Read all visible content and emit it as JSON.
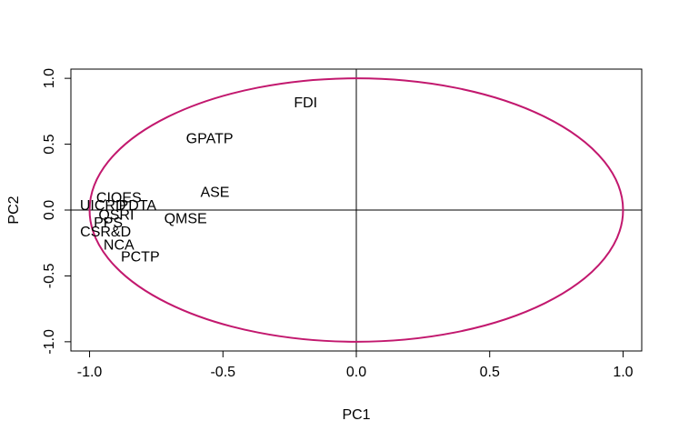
{
  "chart_data": {
    "type": "scatter",
    "title": "",
    "xlabel": "PC1",
    "ylabel": "PC2",
    "xlim": [
      -1.07,
      1.07
    ],
    "ylim": [
      -1.07,
      1.07
    ],
    "xticks": [
      -1.0,
      -0.5,
      0.0,
      0.5,
      1.0
    ],
    "yticks": [
      -1.0,
      -0.5,
      0.0,
      0.5,
      1.0
    ],
    "xtick_labels": [
      "-1.0",
      "-0.5",
      "0.0",
      "0.5",
      "1.0"
    ],
    "ytick_labels": [
      "-1.0",
      "-0.5",
      "0.0",
      "0.5",
      "1.0"
    ],
    "grid": false,
    "reference_lines": {
      "x": 0,
      "y": 0
    },
    "circle": {
      "center": [
        0,
        0
      ],
      "radius": 1,
      "color": "#C2186E"
    },
    "points": [
      {
        "label": "FDI",
        "x": -0.19,
        "y": 0.81
      },
      {
        "label": "GPATP",
        "x": -0.55,
        "y": 0.54
      },
      {
        "label": "ASE",
        "x": -0.53,
        "y": 0.13
      },
      {
        "label": "QMSE",
        "x": -0.64,
        "y": -0.07
      },
      {
        "label": "CIOES",
        "x": -0.89,
        "y": 0.09
      },
      {
        "label": "UICRD",
        "x": -0.95,
        "y": 0.03
      },
      {
        "label": "PDTA",
        "x": -0.82,
        "y": 0.03
      },
      {
        "label": "QSRI",
        "x": -0.9,
        "y": -0.04
      },
      {
        "label": "PPS",
        "x": -0.93,
        "y": -0.1
      },
      {
        "label": "CSR&D",
        "x": -0.94,
        "y": -0.17
      },
      {
        "label": "NCA",
        "x": -0.89,
        "y": -0.27
      },
      {
        "label": "PCTP",
        "x": -0.81,
        "y": -0.36
      }
    ]
  }
}
